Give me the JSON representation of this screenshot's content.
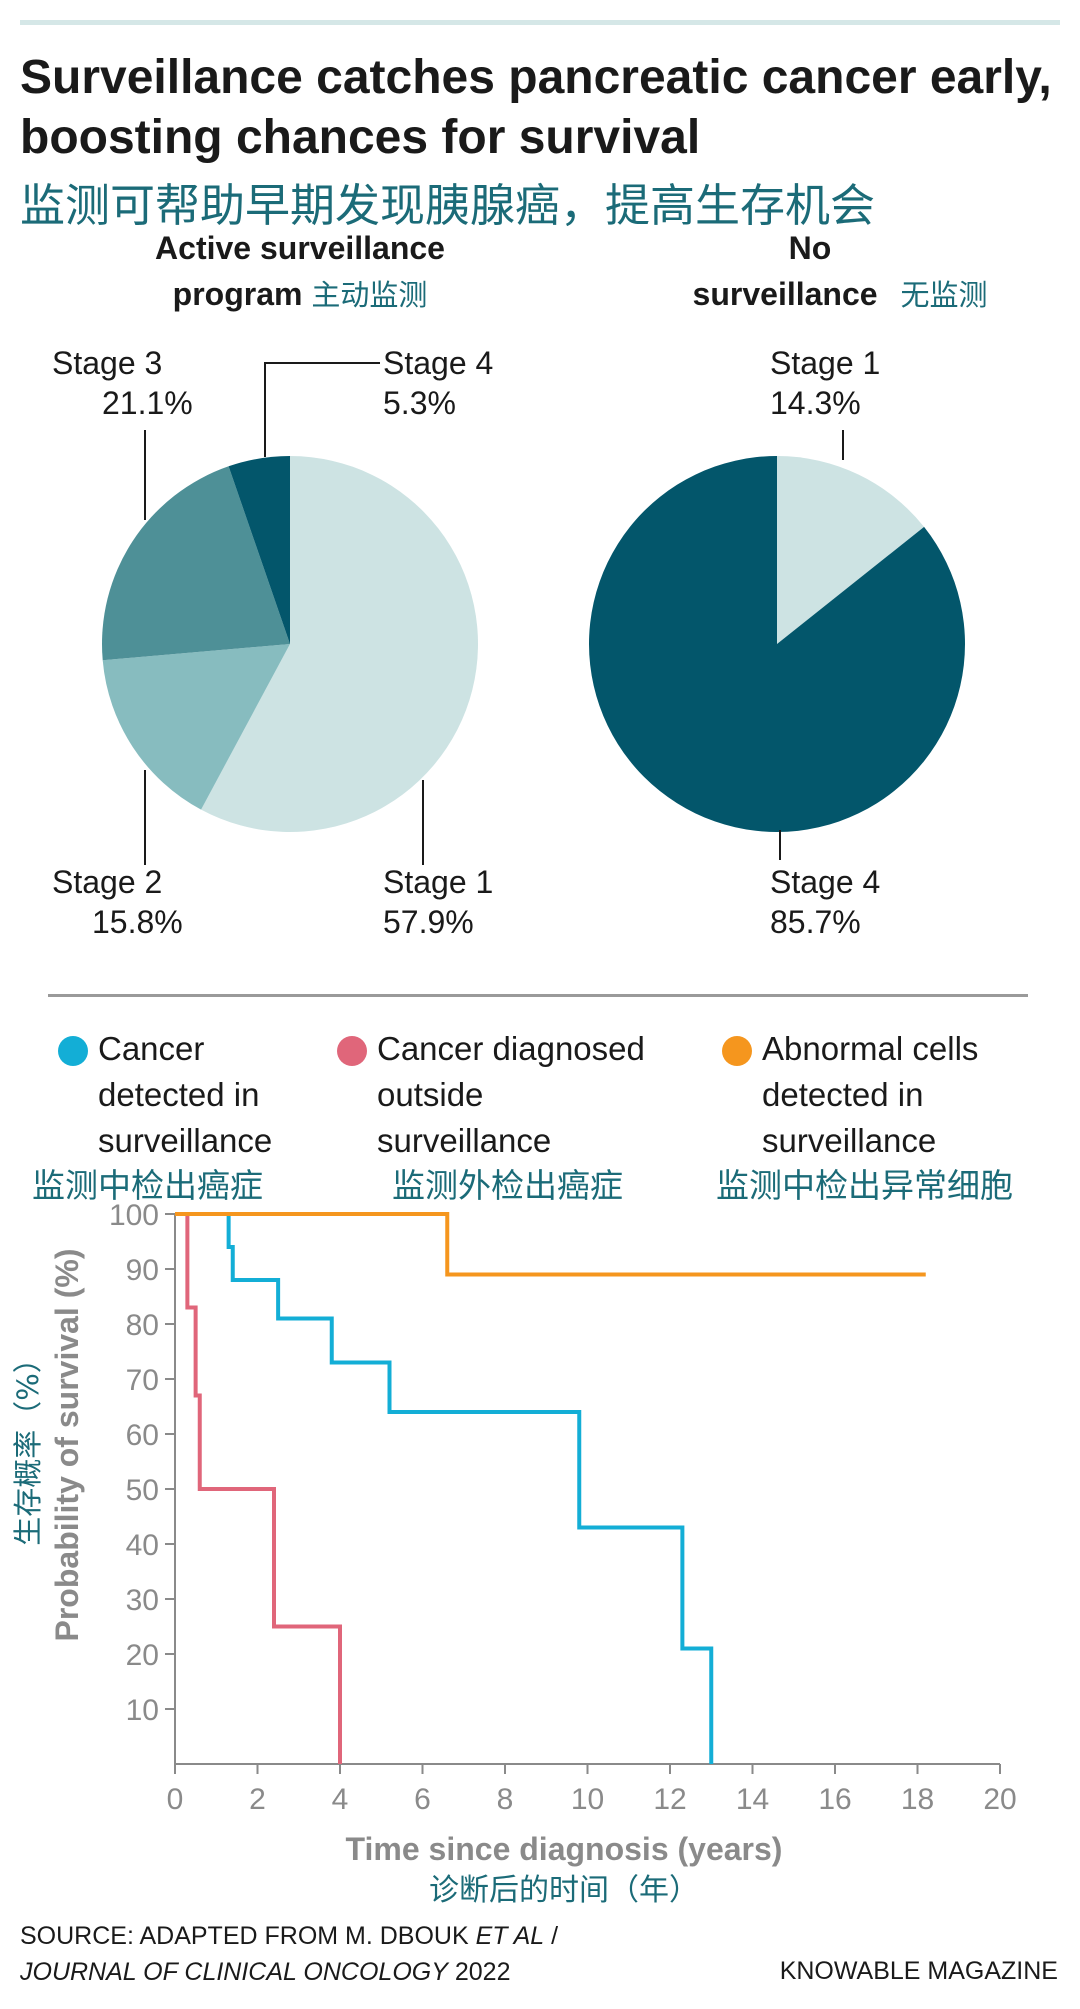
{
  "header": {
    "title": "Surveillance catches pancreatic cancer early, boosting chances for survival",
    "title_cn": "监测可帮助早期发现胰腺癌，提高生存机会"
  },
  "colors": {
    "stage1": "#cde3e3",
    "stage2": "#87bcbf",
    "stage3": "#4e9097",
    "stage4": "#03566b",
    "surveillance_cancer": "#13aed6",
    "outside_cancer": "#e0667a",
    "abnormal_cells": "#f5961e",
    "axis": "#8a8a8a",
    "teal_text": "#1b6b78"
  },
  "pies": {
    "active": {
      "title_line1": "Active surveillance",
      "title_line2": "program",
      "title_cn": "主动监测",
      "slices": [
        {
          "label": "Stage 1",
          "pct_text": "57.9%"
        },
        {
          "label": "Stage 2",
          "pct_text": "15.8%"
        },
        {
          "label": "Stage 3",
          "pct_text": "21.1%"
        },
        {
          "label": "Stage 4",
          "pct_text": "5.3%"
        }
      ]
    },
    "none": {
      "title_line1": "No",
      "title_line2": "surveillance",
      "title_cn": "无监测",
      "slices": [
        {
          "label": "Stage 1",
          "pct_text": "14.3%"
        },
        {
          "label": "Stage 4",
          "pct_text": "85.7%"
        }
      ]
    }
  },
  "legend": [
    {
      "label_lines": [
        "Cancer",
        "detected in",
        "surveillance"
      ],
      "label_cn": "监测中检出癌症",
      "color": "#13aed6"
    },
    {
      "label_lines": [
        "Cancer diagnosed",
        "outside",
        "surveillance"
      ],
      "label_cn": "监测外检出癌症",
      "color": "#e0667a"
    },
    {
      "label_lines": [
        "Abnormal cells",
        "detected in",
        "surveillance"
      ],
      "label_cn": "监测中检出异常细胞",
      "color": "#f5961e"
    }
  ],
  "axes": {
    "xlabel": "Time since diagnosis (years)",
    "xlabel_cn": "诊断后的时间（年）",
    "ylabel": "Probability of survival (%)",
    "ylabel_cn": "生存概率（%）"
  },
  "chart_data": [
    {
      "type": "pie",
      "title": "Active surveillance program",
      "categories": [
        "Stage 1",
        "Stage 2",
        "Stage 3",
        "Stage 4"
      ],
      "values": [
        57.9,
        15.8,
        21.1,
        5.3
      ]
    },
    {
      "type": "pie",
      "title": "No surveillance",
      "categories": [
        "Stage 1",
        "Stage 4"
      ],
      "values": [
        14.3,
        85.7
      ]
    },
    {
      "type": "line",
      "step": true,
      "xlabel": "Time since diagnosis (years)",
      "ylabel": "Probability of survival (%)",
      "xlim": [
        0,
        20
      ],
      "ylim": [
        0,
        100
      ],
      "xticks": [
        0,
        2,
        4,
        6,
        8,
        10,
        12,
        14,
        16,
        18,
        20
      ],
      "yticks": [
        10,
        20,
        30,
        40,
        50,
        60,
        70,
        80,
        90,
        100
      ],
      "series": [
        {
          "name": "Cancer detected in surveillance",
          "x": [
            0,
            1.3,
            1.3,
            1.4,
            1.4,
            2.5,
            2.5,
            3.8,
            3.8,
            5.2,
            5.2,
            9.8,
            9.8,
            12.3,
            12.3,
            13.0,
            13.0
          ],
          "y": [
            100,
            100,
            94,
            94,
            88,
            88,
            81,
            81,
            73,
            73,
            64,
            64,
            43,
            43,
            21,
            21,
            0
          ]
        },
        {
          "name": "Cancer diagnosed outside surveillance",
          "x": [
            0,
            0.3,
            0.3,
            0.5,
            0.5,
            0.6,
            0.6,
            2.4,
            2.4,
            4.0,
            4.0
          ],
          "y": [
            100,
            100,
            83,
            83,
            67,
            67,
            50,
            50,
            25,
            25,
            0
          ]
        },
        {
          "name": "Abnormal cells detected in surveillance",
          "x": [
            0,
            6.6,
            6.6,
            18.2
          ],
          "y": [
            100,
            100,
            89,
            89
          ]
        }
      ]
    }
  ],
  "footer": {
    "source_line1": "SOURCE: ADAPTED FROM M. DBOUK",
    "source_etal": "ET AL",
    "source_slash": " /",
    "source_journal": "JOURNAL OF CLINICAL ONCOLOGY",
    "source_year": " 2022",
    "brand": "KNOWABLE MAGAZINE"
  }
}
